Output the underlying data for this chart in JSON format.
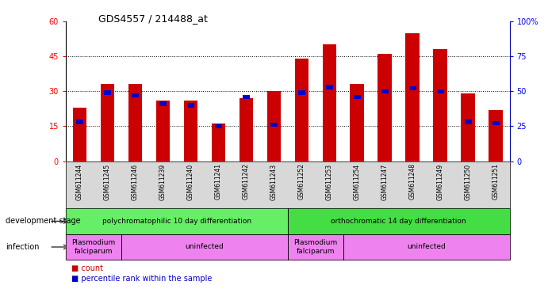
{
  "title": "GDS4557 / 214488_at",
  "samples": [
    "GSM611244",
    "GSM611245",
    "GSM611246",
    "GSM611239",
    "GSM611240",
    "GSM611241",
    "GSM611242",
    "GSM611243",
    "GSM611252",
    "GSM611253",
    "GSM611254",
    "GSM611247",
    "GSM611248",
    "GSM611249",
    "GSM611250",
    "GSM611251"
  ],
  "counts": [
    23,
    33,
    33,
    26,
    26,
    16,
    27,
    30,
    44,
    50,
    33,
    46,
    55,
    48,
    29,
    22
  ],
  "percentiles": [
    28,
    49,
    47,
    41,
    40,
    25,
    46,
    26,
    49,
    53,
    46,
    50,
    52,
    50,
    28,
    27
  ],
  "ylim_left": [
    0,
    60
  ],
  "ylim_right": [
    0,
    100
  ],
  "yticks_left": [
    0,
    15,
    30,
    45,
    60
  ],
  "yticks_right": [
    0,
    25,
    50,
    75,
    100
  ],
  "bar_color": "#cc0000",
  "percentile_color": "#0000cc",
  "dev_stage_groups": [
    {
      "label": "polychromatophilic 10 day differentiation",
      "start": 0,
      "end": 8,
      "color": "#66ee66"
    },
    {
      "label": "orthochromatic 14 day differentiation",
      "start": 8,
      "end": 16,
      "color": "#44dd44"
    }
  ],
  "infection_groups": [
    {
      "label": "Plasmodium\nfalciparum",
      "start": 0,
      "end": 2,
      "color": "#ee82ee"
    },
    {
      "label": "uninfected",
      "start": 2,
      "end": 8,
      "color": "#ee82ee"
    },
    {
      "label": "Plasmodium\nfalciparum",
      "start": 8,
      "end": 10,
      "color": "#ee82ee"
    },
    {
      "label": "uninfected",
      "start": 10,
      "end": 16,
      "color": "#ee82ee"
    }
  ],
  "legend_count_label": "count",
  "legend_pct_label": "percentile rank within the sample",
  "dev_stage_label": "development stage",
  "infection_label": "infection"
}
